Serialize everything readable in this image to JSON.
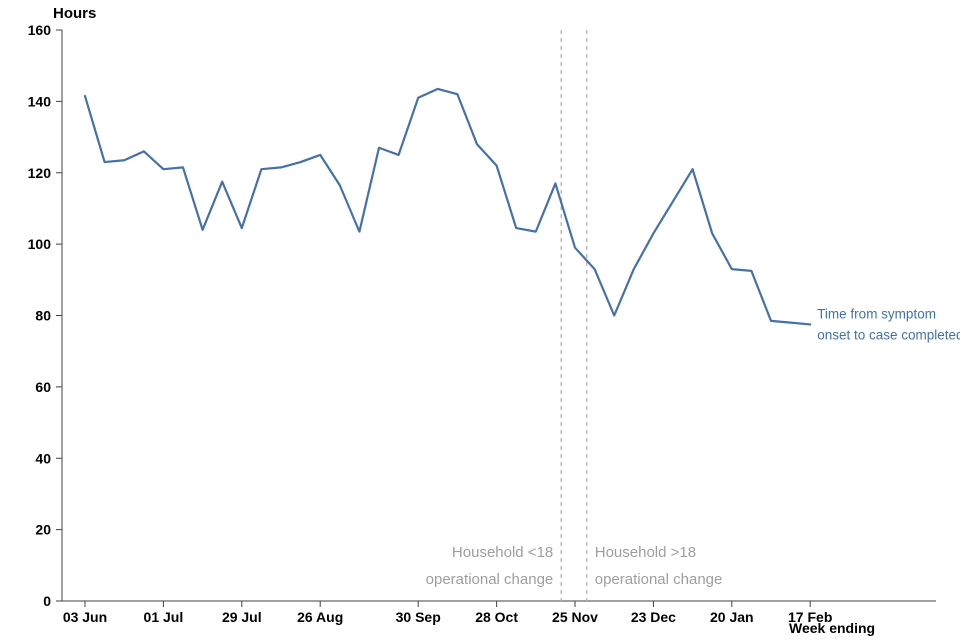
{
  "page": {
    "background": "#ffffff"
  },
  "chart_data": {
    "type": "line",
    "title": "",
    "ylabel": "Hours",
    "xlabel": "Week ending",
    "ylim": [
      0,
      160
    ],
    "yticks": [
      0,
      20,
      40,
      60,
      80,
      100,
      120,
      140,
      160
    ],
    "x_unit": "weeks-from-first-point",
    "n_points": 38,
    "xtick_labels": [
      "03 Jun",
      "01 Jul",
      "29 Jul",
      "26 Aug",
      "30 Sep",
      "28 Oct",
      "25 Nov",
      "23 Dec",
      "20 Jan",
      "17 Feb"
    ],
    "xtick_positions": [
      0,
      4,
      8,
      12,
      17,
      21,
      25,
      29,
      33,
      37
    ],
    "grid": false,
    "legend_position": "end-of-line",
    "series": [
      {
        "name": "Time from symptom onset to case completed",
        "label_lines": [
          "Time from symptom",
          "onset to case completed"
        ],
        "color": "#4472a8",
        "values": [
          141.5,
          123,
          123.5,
          126,
          121,
          121.5,
          104,
          117.5,
          104.5,
          121,
          121.5,
          123,
          125,
          116.5,
          103.5,
          127,
          125,
          141,
          143.5,
          142,
          128,
          122,
          104.5,
          103.5,
          117,
          99,
          93,
          80,
          93,
          103,
          112,
          121,
          103,
          93,
          92.5,
          78.5,
          78,
          77.5
        ]
      }
    ],
    "annotations": [
      {
        "type": "vline",
        "x": 24.3,
        "style": "dashed",
        "color": "#b3b3b3",
        "label_lines": [
          "Household <18",
          "operational change"
        ],
        "label_side": "left"
      },
      {
        "type": "vline",
        "x": 25.6,
        "style": "dashed",
        "color": "#b3b3b3",
        "label_lines": [
          "Household >18",
          "operational change"
        ],
        "label_side": "right"
      }
    ]
  },
  "colors": {
    "line": "#4472a8",
    "axis": "#404040",
    "tick_label": "#000000",
    "annotation_gray": "#9e9e9e"
  }
}
